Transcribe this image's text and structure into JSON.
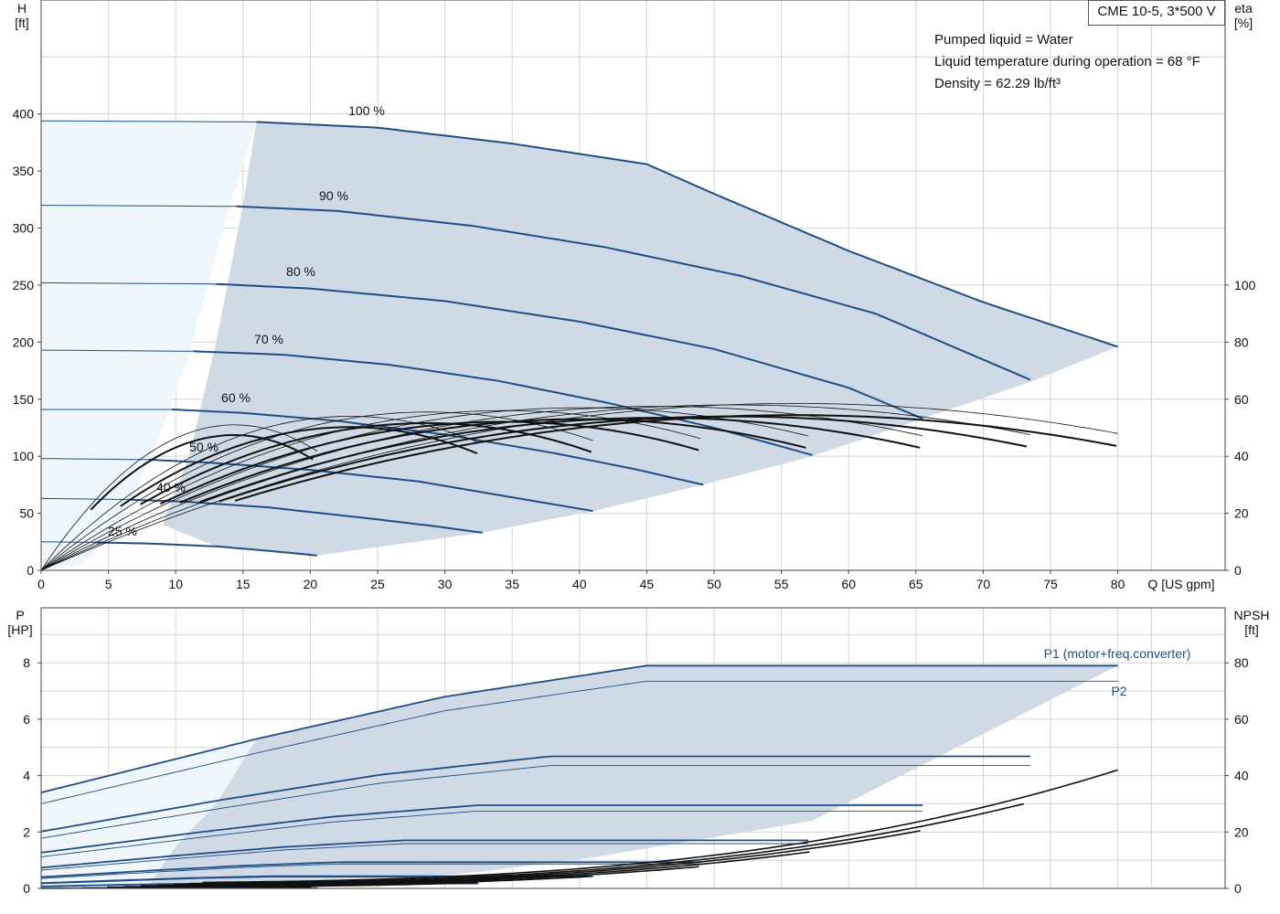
{
  "pump_title": "CME 10-5, 3*500 V",
  "info_lines": [
    "Pumped liquid = Water",
    "Liquid temperature during operation = 68 °F",
    "Density = 62.29 lb/ft³"
  ],
  "colors": {
    "curve": "#1f4e85",
    "fill": "#cfdae6",
    "fill_light": "#eef5fb",
    "efficiency": "#111111"
  },
  "chart_data": [
    {
      "type": "line",
      "name_hidden": true,
      "xlabel": "Q [US gpm]",
      "ylabel_left": [
        "H",
        "[ft]"
      ],
      "ylabel_right": [
        "eta",
        "[%]"
      ],
      "xlim": [
        0,
        85
      ],
      "ylim_left": [
        0,
        450
      ],
      "ylim_right": [
        0,
        450
      ],
      "x_ticks": [
        0,
        5,
        10,
        15,
        20,
        25,
        30,
        35,
        40,
        45,
        50,
        55,
        60,
        65,
        70,
        75,
        80
      ],
      "y_ticks_left": [
        0,
        50,
        100,
        150,
        200,
        250,
        300,
        350,
        400
      ],
      "y_ticks_right_labels": [
        0,
        20,
        40,
        60,
        80,
        100
      ],
      "grid": true,
      "speed_curves": [
        {
          "label": "100 %",
          "q": [
            0,
            16,
            25,
            35,
            45,
            50,
            60,
            70,
            80
          ],
          "h": [
            394,
            393,
            388,
            374,
            356,
            330,
            280,
            235,
            196
          ]
        },
        {
          "label": "90 %",
          "q": [
            0,
            14.5,
            22,
            32,
            42,
            52,
            62,
            73.5
          ],
          "h": [
            320,
            319,
            315,
            302,
            283,
            258,
            225,
            167
          ]
        },
        {
          "label": "80 %",
          "q": [
            0,
            13,
            20,
            30,
            40,
            50,
            60,
            65.5
          ],
          "h": [
            252,
            251,
            247,
            236,
            218,
            194,
            160,
            133
          ]
        },
        {
          "label": "70 %",
          "q": [
            0,
            11.3,
            18,
            26,
            34,
            42,
            50,
            57.3
          ],
          "h": [
            193,
            192,
            189,
            180,
            166,
            147,
            125,
            101
          ]
        },
        {
          "label": "60 %",
          "q": [
            0,
            9.7,
            15,
            22,
            30,
            38,
            44,
            49.2
          ],
          "h": [
            141,
            141,
            138,
            131,
            119,
            103,
            89,
            75
          ]
        },
        {
          "label": "50 %",
          "q": [
            0,
            8,
            13,
            20,
            28,
            36,
            41
          ],
          "h": [
            98,
            97,
            94,
            88,
            78,
            62,
            52
          ]
        },
        {
          "label": "40 %",
          "q": [
            0,
            6.5,
            11,
            17,
            24,
            29,
            32.8
          ],
          "h": [
            63,
            62,
            60,
            55,
            46,
            39,
            33
          ]
        },
        {
          "label": "25 %",
          "q": [
            0,
            4,
            8,
            13,
            17,
            20.5
          ],
          "h": [
            25,
            24.5,
            23.5,
            21,
            17,
            13
          ]
        }
      ],
      "efficiency_scale_note": "eta 100% plotted at H=250 ft"
    },
    {
      "type": "line",
      "xlabel": "",
      "ylabel_left": [
        "P",
        "[HP]"
      ],
      "ylabel_right": [
        "NPSH",
        "[ft]"
      ],
      "ylim_left": [
        0,
        9
      ],
      "ylim_right": [
        0,
        90
      ],
      "y_ticks_left": [
        0,
        2,
        4,
        6,
        8
      ],
      "y_ticks_right": [
        0,
        20,
        40,
        60,
        80
      ],
      "series_labels": [
        "P1 (motor+freq.converter)",
        "P2"
      ],
      "p1_100": {
        "q": [
          0,
          16,
          30,
          45,
          60,
          80
        ],
        "p": [
          3.4,
          5.3,
          6.8,
          7.9,
          7.9,
          7.9
        ]
      },
      "p2_100": {
        "q": [
          0,
          16,
          30,
          45,
          60,
          80
        ],
        "p": [
          3.0,
          4.8,
          6.3,
          7.35,
          7.35,
          7.35
        ]
      },
      "npsh": {
        "q": [
          20,
          40,
          50,
          60,
          70,
          80
        ],
        "npsh": [
          3,
          8,
          14,
          22,
          32,
          42
        ]
      }
    }
  ]
}
